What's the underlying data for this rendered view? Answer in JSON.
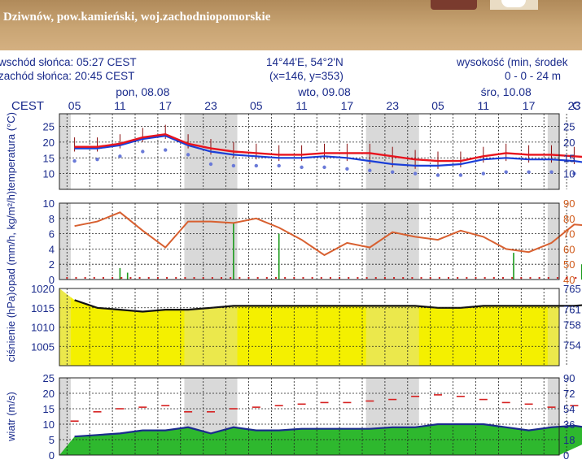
{
  "header": {
    "location": "Dziwnów, pow.kamieński, woj.zachodniopomorskie",
    "sunrise": "wschód słońca: 05:27 CEST",
    "sunset": "zachód słońca: 20:45 CEST",
    "coords": "14°44'E, 54°2'N",
    "grid": "(x=146, y=353)",
    "altitude_label": "wysokość (min, środek",
    "altitude_value": "0 - 0 - 24 m"
  },
  "timeline": {
    "timezone_left": "CEST",
    "timezone_right": "C",
    "day_labels": [
      "pon, 08.08",
      "wto, 09.08",
      "śro, 10.08"
    ],
    "hour_labels": [
      "05",
      "11",
      "17",
      "23",
      "05",
      "11",
      "17",
      "23",
      "05",
      "11",
      "17",
      "23",
      "05"
    ]
  },
  "colors": {
    "axis_text": "#1a2b8c",
    "right_axis_text": "#d05a1a",
    "temperature": "#e8141e",
    "temp_min": "#1a3fd8",
    "dewpoint": "#6a7ad8",
    "humidity": "#d86030",
    "precip": "#1a9a1a",
    "pressure_fill": "#f4f000",
    "wind_line": "#1a2b8c",
    "gust": "#d62020",
    "night_band": "#d9d9d9"
  },
  "chart_data": [
    {
      "panel": "temperature",
      "type": "line",
      "ylabel": "temperatura (°C)",
      "ylim": [
        5,
        29
      ],
      "yticks": [
        10,
        15,
        20,
        25
      ],
      "hours": [
        0,
        3,
        6,
        9,
        12,
        15,
        18,
        21,
        24,
        27,
        30,
        33,
        36,
        39,
        42,
        45,
        48,
        51,
        54,
        57,
        60,
        63,
        66,
        69,
        72
      ],
      "series": [
        {
          "values": [
            18.5,
            18.5,
            19.5,
            21.5,
            22.5,
            19.5,
            18,
            17,
            16.5,
            16,
            16,
            16.5,
            16.5,
            16.5,
            15.5,
            14.5,
            14,
            14,
            15.5,
            16.5,
            16,
            16,
            15.5,
            15,
            14
          ]
        },
        {
          "values": [
            18,
            18,
            19,
            21,
            22,
            19,
            17,
            16,
            15.5,
            15,
            15,
            15.5,
            15,
            14,
            13,
            12.5,
            12.5,
            13,
            14.5,
            15,
            14.5,
            14.5,
            14,
            13,
            12
          ]
        },
        {
          "values": [
            14,
            14.5,
            15.5,
            17,
            17.5,
            16,
            13,
            12.5,
            12.5,
            12.5,
            12,
            12,
            11.5,
            11,
            10.5,
            10,
            9.5,
            9.5,
            10,
            10.5,
            10.5,
            10.5,
            10,
            10,
            10
          ]
        }
      ]
    },
    {
      "panel": "precipitation",
      "type": "bar",
      "ylabel": "opad (mm/h, kg/m²/h)",
      "ylim": [
        0,
        10
      ],
      "yticks": [
        0,
        2,
        4,
        6,
        8,
        10
      ],
      "right_label": "wilgotność (%)",
      "right_ylim": [
        40,
        90
      ],
      "right_yticks": [
        40,
        50,
        60,
        70,
        80,
        90
      ],
      "hours": [
        0,
        3,
        6,
        9,
        12,
        15,
        18,
        21,
        24,
        27,
        30,
        33,
        36,
        39,
        42,
        45,
        48,
        51,
        54,
        57,
        60,
        63,
        66,
        69,
        72
      ],
      "humidity": [
        75,
        78,
        84,
        72,
        61,
        78,
        78,
        77,
        80,
        74,
        66,
        56,
        64,
        61,
        71,
        68,
        66,
        72,
        68,
        60,
        58,
        64,
        76,
        75,
        70
      ],
      "precip": [
        {
          "hour": 6,
          "mm": 1.5
        },
        {
          "hour": 7,
          "mm": 0.9
        },
        {
          "hour": 21,
          "mm": 7.5
        },
        {
          "hour": 27,
          "mm": 6.0
        },
        {
          "hour": 58,
          "mm": 3.5
        },
        {
          "hour": 67,
          "mm": 2.0
        },
        {
          "hour": 71,
          "mm": 2.0
        }
      ]
    },
    {
      "panel": "pressure",
      "type": "area",
      "ylabel": "ciśnienie (hPa)",
      "ylim": [
        1000,
        1020
      ],
      "yticks": [
        1005,
        1010,
        1015,
        1020
      ],
      "right_label": "(mmHg)",
      "right_ylim": [
        750,
        765
      ],
      "right_yticks": [
        754,
        758,
        761,
        765
      ],
      "hours": [
        0,
        3,
        6,
        9,
        12,
        15,
        18,
        21,
        24,
        27,
        30,
        33,
        36,
        39,
        42,
        45,
        48,
        51,
        54,
        57,
        60,
        63,
        66,
        69,
        72
      ],
      "values": [
        1017,
        1015,
        1014.5,
        1014,
        1014.5,
        1014.5,
        1015,
        1015.5,
        1015.5,
        1015.5,
        1015.5,
        1015.5,
        1015.5,
        1015.5,
        1015.5,
        1015.5,
        1015,
        1015,
        1015.5,
        1015.5,
        1015.5,
        1015.5,
        1015.5,
        1016,
        1016
      ]
    },
    {
      "panel": "wind",
      "type": "line",
      "ylabel": "wiatr (m/s)",
      "ylim": [
        0,
        25
      ],
      "yticks": [
        0,
        5,
        10,
        15,
        20,
        25
      ],
      "right_label": "(km/h)",
      "right_yticks": [
        0,
        18,
        36,
        54,
        72,
        90
      ],
      "hours": [
        0,
        3,
        6,
        9,
        12,
        15,
        18,
        21,
        24,
        27,
        30,
        33,
        36,
        39,
        42,
        45,
        48,
        51,
        54,
        57,
        60,
        63,
        66,
        69,
        72
      ],
      "series": [
        {
          "values": [
            6,
            6.5,
            7,
            8,
            8,
            9,
            7,
            9,
            8,
            8,
            8.5,
            8.5,
            8.5,
            8.5,
            9,
            9,
            10,
            10,
            10,
            9,
            8,
            9,
            9.5,
            8.5,
            9
          ]
        },
        {
          "values": [
            11,
            14,
            15,
            15.5,
            16,
            14,
            14,
            15,
            15.5,
            16,
            16.5,
            17,
            17,
            17.5,
            18,
            19,
            19.5,
            19,
            18,
            17,
            16.5,
            15.5,
            16,
            15.5,
            15
          ]
        }
      ]
    }
  ]
}
